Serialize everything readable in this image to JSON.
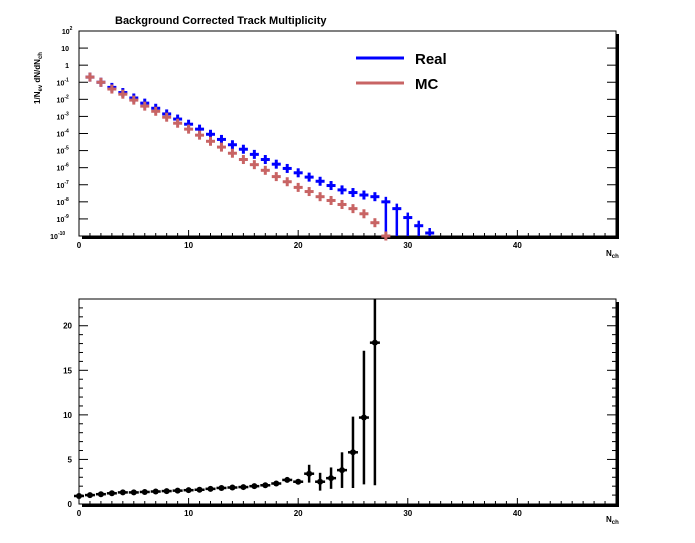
{
  "chart_data": [
    {
      "type": "scatter",
      "title": "Background Corrected Track Multiplicity",
      "xlabel": "N",
      "xlabel_sub": "ch",
      "ylabel": "1/N",
      "ylabel_parts": {
        "a": "1/N",
        "a_sub": "ev",
        "b": " dN/dN",
        "b_sub": "ch"
      },
      "yscale": "log",
      "xlim": [
        0,
        49
      ],
      "ylim": [
        1e-10,
        100
      ],
      "x_ticks": [
        {
          "v": 0,
          "label": "0"
        },
        {
          "v": 10,
          "label": "10"
        },
        {
          "v": 20,
          "label": "20"
        },
        {
          "v": 30,
          "label": "30"
        },
        {
          "v": 40,
          "label": "40"
        }
      ],
      "y_ticks": [
        {
          "exp": 2,
          "base": "10",
          "sup": "2"
        },
        {
          "exp": 1,
          "base": "10",
          "sup": ""
        },
        {
          "exp": 0,
          "base": "1",
          "sup": ""
        },
        {
          "exp": -1,
          "base": "10",
          "sup": "-1"
        },
        {
          "exp": -2,
          "base": "10",
          "sup": "-2"
        },
        {
          "exp": -3,
          "base": "10",
          "sup": "-3"
        },
        {
          "exp": -4,
          "base": "10",
          "sup": "-4"
        },
        {
          "exp": -5,
          "base": "10",
          "sup": "-5"
        },
        {
          "exp": -6,
          "base": "10",
          "sup": "-6"
        },
        {
          "exp": -7,
          "base": "10",
          "sup": "-7"
        },
        {
          "exp": -8,
          "base": "10",
          "sup": "-8"
        },
        {
          "exp": -9,
          "base": "10",
          "sup": "-9"
        },
        {
          "exp": -10,
          "base": "10",
          "sup": "-10"
        }
      ],
      "legend_position": "top-right",
      "series": [
        {
          "name": "Real",
          "color": "#0000ff",
          "x": [
            1,
            2,
            3,
            4,
            5,
            6,
            7,
            8,
            9,
            10,
            11,
            12,
            13,
            14,
            15,
            16,
            17,
            18,
            19,
            20,
            21,
            22,
            23,
            24,
            25,
            26,
            27,
            28,
            29,
            30,
            31,
            32
          ],
          "y": [
            0.2,
            0.1,
            0.05,
            0.025,
            0.012,
            0.006,
            0.003,
            0.0014,
            0.0007,
            0.00035,
            0.00018,
            9e-05,
            4.5e-05,
            2.2e-05,
            1.2e-05,
            6e-06,
            3e-06,
            1.6e-06,
            9e-07,
            5e-07,
            2.8e-07,
            1.6e-07,
            9e-08,
            5e-08,
            3.5e-08,
            2.5e-08,
            2e-08,
            1e-08,
            4e-09,
            1.2e-09,
            4e-10,
            1.5e-10
          ],
          "lower_to_axis_from_x": 28
        },
        {
          "name": "MC",
          "color": "#c86464",
          "x": [
            1,
            2,
            3,
            4,
            5,
            6,
            7,
            8,
            9,
            10,
            11,
            12,
            13,
            14,
            15,
            16,
            17,
            18,
            19,
            20,
            21,
            22,
            23,
            24,
            25,
            26,
            27,
            28
          ],
          "y": [
            0.2,
            0.1,
            0.04,
            0.02,
            0.009,
            0.004,
            0.002,
            0.0009,
            0.0004,
            0.00018,
            8e-05,
            3.5e-05,
            1.6e-05,
            7e-06,
            3e-06,
            1.5e-06,
            7e-07,
            3e-07,
            1.5e-07,
            7e-08,
            4e-08,
            2e-08,
            1.2e-08,
            7e-09,
            4e-09,
            2e-09,
            6e-10,
            1e-10
          ]
        }
      ]
    },
    {
      "type": "scatter",
      "title": "",
      "xlabel": "N",
      "xlabel_sub": "ch",
      "ylabel": "",
      "xlim": [
        0,
        49
      ],
      "ylim": [
        0,
        23
      ],
      "x_ticks": [
        {
          "v": 0,
          "label": "0"
        },
        {
          "v": 10,
          "label": "10"
        },
        {
          "v": 20,
          "label": "20"
        },
        {
          "v": 30,
          "label": "30"
        },
        {
          "v": 40,
          "label": "40"
        }
      ],
      "y_ticks": [
        {
          "v": 0,
          "label": "0"
        },
        {
          "v": 5,
          "label": "5"
        },
        {
          "v": 10,
          "label": "10"
        },
        {
          "v": 15,
          "label": "15"
        },
        {
          "v": 20,
          "label": "20"
        }
      ],
      "series": [
        {
          "color": "#000000",
          "x": [
            0,
            1,
            2,
            3,
            4,
            5,
            6,
            7,
            8,
            9,
            10,
            11,
            12,
            13,
            14,
            15,
            16,
            17,
            18,
            19,
            20,
            21,
            22,
            23,
            24,
            25,
            26,
            27
          ],
          "y": [
            0.9,
            1.0,
            1.1,
            1.2,
            1.3,
            1.3,
            1.35,
            1.4,
            1.45,
            1.5,
            1.55,
            1.6,
            1.7,
            1.8,
            1.85,
            1.9,
            2.0,
            2.1,
            2.3,
            2.7,
            2.5,
            3.4,
            2.5,
            2.9,
            3.8,
            5.8,
            9.7,
            18.1
          ],
          "err": [
            0.15,
            0.1,
            0.1,
            0.1,
            0.1,
            0.1,
            0.1,
            0.1,
            0.1,
            0.1,
            0.1,
            0.1,
            0.1,
            0.1,
            0.1,
            0.1,
            0.1,
            0.1,
            0.15,
            0.2,
            0.2,
            1.0,
            1.0,
            1.2,
            2.0,
            4.0,
            7.5,
            16.0
          ]
        }
      ]
    }
  ]
}
